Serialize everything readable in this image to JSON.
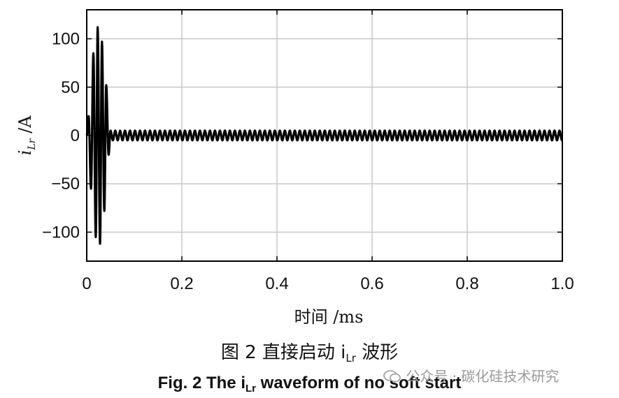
{
  "chart_data": {
    "type": "line",
    "xlabel": "时间 /ms",
    "ylabel_main": "i",
    "ylabel_sub": "Lr",
    "ylabel_unit": " /A",
    "xlim": [
      0,
      1.0
    ],
    "ylim": [
      -130,
      130
    ],
    "xticks": [
      0,
      0.2,
      0.4,
      0.6,
      0.8,
      1.0
    ],
    "xtick_labels": [
      "0",
      "0.2",
      "0.4",
      "0.6",
      "0.8",
      "1.0"
    ],
    "yticks": [
      100,
      50,
      0,
      -50,
      -100
    ],
    "ytick_labels": [
      "100",
      "50",
      "0",
      "−50",
      "−100"
    ],
    "grid": true,
    "series": [
      {
        "color": "#000000",
        "description_points": {
          "x": [
            0.0,
            0.004,
            0.009,
            0.014,
            0.019,
            0.023,
            0.028,
            0.032,
            0.037,
            0.041,
            0.046,
            0.05,
            0.055,
            0.06,
            0.065,
            0.07
          ],
          "y": [
            0,
            20,
            -55,
            85,
            -105,
            112,
            -112,
            97,
            -78,
            52,
            -20,
            5,
            -5,
            5,
            -5,
            4
          ]
        },
        "steady_state_amplitude": 5,
        "steady_state_period_ms": 0.0105
      }
    ]
  },
  "caption_cn_prefix": "图 2  直接启动 i",
  "caption_cn_sub": "Lr",
  "caption_cn_suffix": " 波形",
  "caption_en_prefix": "Fig. 2  The i",
  "caption_en_sub": "Lr",
  "caption_en_suffix": " waveform of no soft start",
  "watermark": "公众号 · 碳化硅技术研究"
}
